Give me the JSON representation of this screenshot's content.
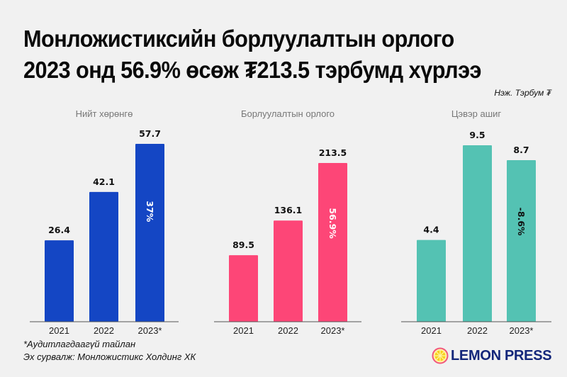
{
  "header": {
    "title_line1": "Монложистиксийн борлуулалтын орлого",
    "title_line2": "2023 онд 56.9% өсөж ₮213.5 тэрбумд хүрлээ",
    "unit": "Нэж. Тэрбум ₮"
  },
  "chart_data": [
    {
      "type": "bar",
      "title": "Нийт хөрөнгө",
      "categories": [
        "2021",
        "2022",
        "2023*"
      ],
      "values": [
        26.4,
        42.1,
        57.7
      ],
      "value_labels": [
        "26.4",
        "42.1",
        "57.7"
      ],
      "growth_label": "37%",
      "growth_label_color": "#ffffff",
      "color": "#1446c4",
      "ylim": [
        0,
        57.7
      ]
    },
    {
      "type": "bar",
      "title": "Борлуулалтын орлого",
      "categories": [
        "2021",
        "2022",
        "2023*"
      ],
      "values": [
        89.5,
        136.1,
        213.5
      ],
      "value_labels": [
        "89.5",
        "136.1",
        "213.5"
      ],
      "growth_label": "56.9%",
      "growth_label_color": "#ffffff",
      "color": "#fd4677",
      "ylim": [
        0,
        213.5
      ]
    },
    {
      "type": "bar",
      "title": "Цэвэр ашиг",
      "categories": [
        "2021",
        "2022",
        "2023*"
      ],
      "values": [
        4.4,
        9.5,
        8.7
      ],
      "value_labels": [
        "4.4",
        "9.5",
        "8.7"
      ],
      "growth_label": "-8.6%",
      "growth_label_color": "#111111",
      "color": "#54c2b3",
      "ylim": [
        0,
        9.5
      ]
    }
  ],
  "footer": {
    "note": "*Аудитлагдаагүй тайлан",
    "source": "Эх сурвалж: Монложистикс Холдинг ХК",
    "logo_text": "LEMON PRESS",
    "logo_icon": "lemon-slice-icon"
  }
}
